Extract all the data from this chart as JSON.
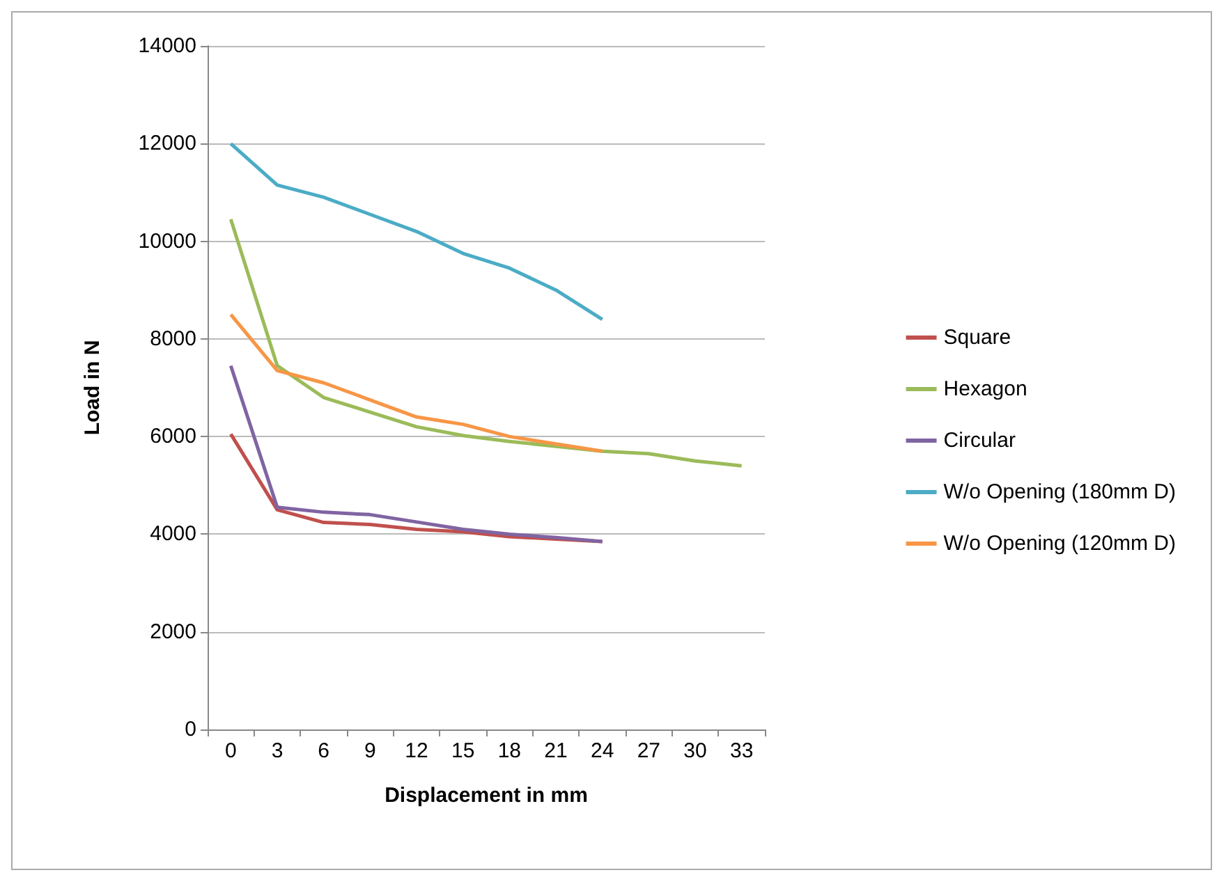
{
  "chart_data": {
    "type": "line",
    "xlabel": "Displacement in mm",
    "ylabel": "Load in N",
    "categories": [
      "0",
      "3",
      "6",
      "9",
      "12",
      "15",
      "18",
      "21",
      "24",
      "27",
      "30",
      "33"
    ],
    "series": [
      {
        "name": "Square",
        "color": "#c0504d",
        "values": [
          6050,
          4500,
          4240,
          4200,
          4100,
          4050,
          3950,
          3900,
          3850,
          null,
          null,
          null
        ]
      },
      {
        "name": "Hexagon",
        "color": "#9bbb59",
        "values": [
          10450,
          7450,
          6800,
          6500,
          6200,
          6020,
          5900,
          5800,
          5700,
          5650,
          5500,
          5400
        ]
      },
      {
        "name": "Circular",
        "color": "#8064a2",
        "values": [
          7450,
          4550,
          4450,
          4400,
          4250,
          4100,
          4000,
          3930,
          3850,
          null,
          null,
          null
        ]
      },
      {
        "name": "W/o Opening (180mm D)",
        "color": "#4bacc6",
        "values": [
          12000,
          11150,
          10900,
          10550,
          10200,
          9750,
          9450,
          9000,
          8400,
          null,
          null,
          null
        ]
      },
      {
        "name": "W/o Opening (120mm D)",
        "color": "#f79646",
        "values": [
          8500,
          7350,
          7100,
          6750,
          6400,
          6250,
          6000,
          5850,
          5700,
          null,
          null,
          null
        ]
      }
    ],
    "ylim": [
      0,
      14000
    ],
    "yticks": [
      0,
      2000,
      4000,
      6000,
      8000,
      10000,
      12000,
      14000
    ],
    "grid": "y",
    "legend": "right",
    "marker": "none",
    "line_style": "solid"
  }
}
